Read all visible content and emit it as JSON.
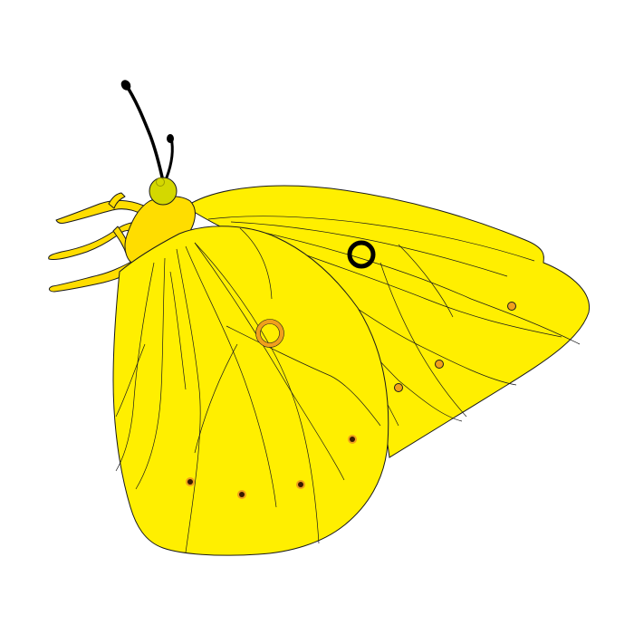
{
  "illustration": {
    "subject_icon": "butterfly-icon",
    "colors": {
      "background": "#ffffff",
      "wing_yellow": "#ffef00",
      "body_yellow": "#ffdd00",
      "head_green": "#d4d800",
      "outline": "#1a1a1a",
      "antenna": "#000000",
      "eye_ring_black": "#000000",
      "eye_ring_orange": "#f0a01c",
      "spot_orange": "#f0a01c",
      "spot_dark": "#3a1a00"
    }
  }
}
